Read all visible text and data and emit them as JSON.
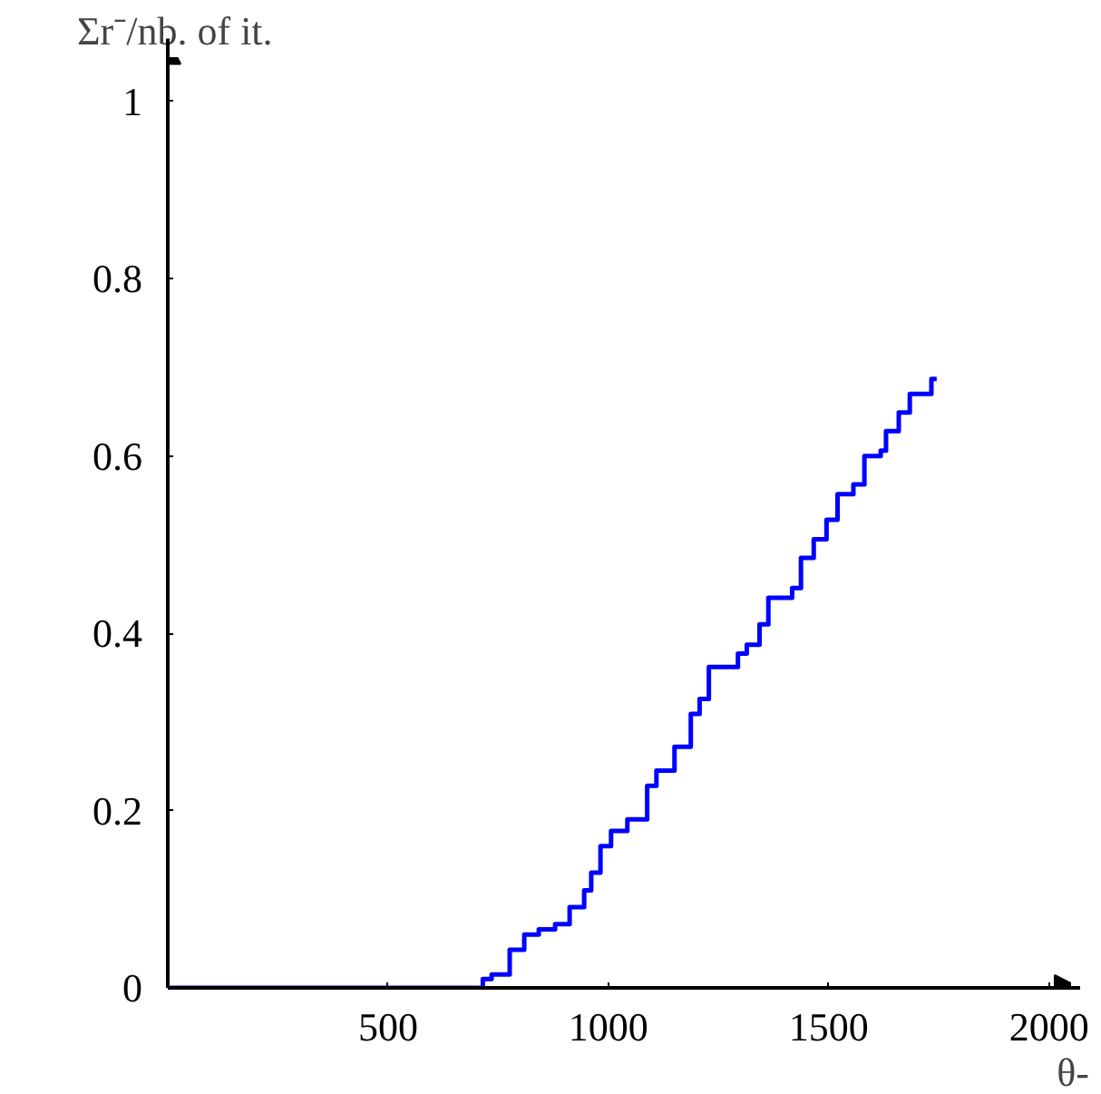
{
  "chart_data": {
    "type": "step",
    "xlabel": "θ-",
    "ylabel": "Σr⁻/nb. of it.",
    "x": [
      0,
      715,
      735,
      776,
      809,
      842,
      879,
      912,
      945,
      961,
      982,
      1006,
      1043,
      1088,
      1109,
      1150,
      1187,
      1207,
      1228,
      1294,
      1314,
      1343,
      1363,
      1417,
      1437,
      1466,
      1495,
      1520,
      1556,
      1581,
      1618,
      1630,
      1659,
      1684,
      1733,
      1745
    ],
    "series": [
      {
        "color": "#0000ff",
        "values": [
          0,
          0.01,
          0.015,
          0.043,
          0.06,
          0.066,
          0.072,
          0.091,
          0.11,
          0.13,
          0.16,
          0.177,
          0.19,
          0.228,
          0.245,
          0.272,
          0.309,
          0.326,
          0.362,
          0.377,
          0.387,
          0.41,
          0.44,
          0.451,
          0.485,
          0.506,
          0.528,
          0.557,
          0.568,
          0.6,
          0.606,
          0.628,
          0.649,
          0.67,
          0.687,
          0.687
        ]
      }
    ],
    "xlim": [
      0,
      2050
    ],
    "ylim": [
      0,
      1.05
    ],
    "xticks": [
      500,
      1000,
      1500,
      2000
    ],
    "yticks": [
      0,
      0.2,
      0.4,
      0.6,
      0.8,
      1
    ],
    "grid": false,
    "marker": "none",
    "line_style": "solid"
  }
}
